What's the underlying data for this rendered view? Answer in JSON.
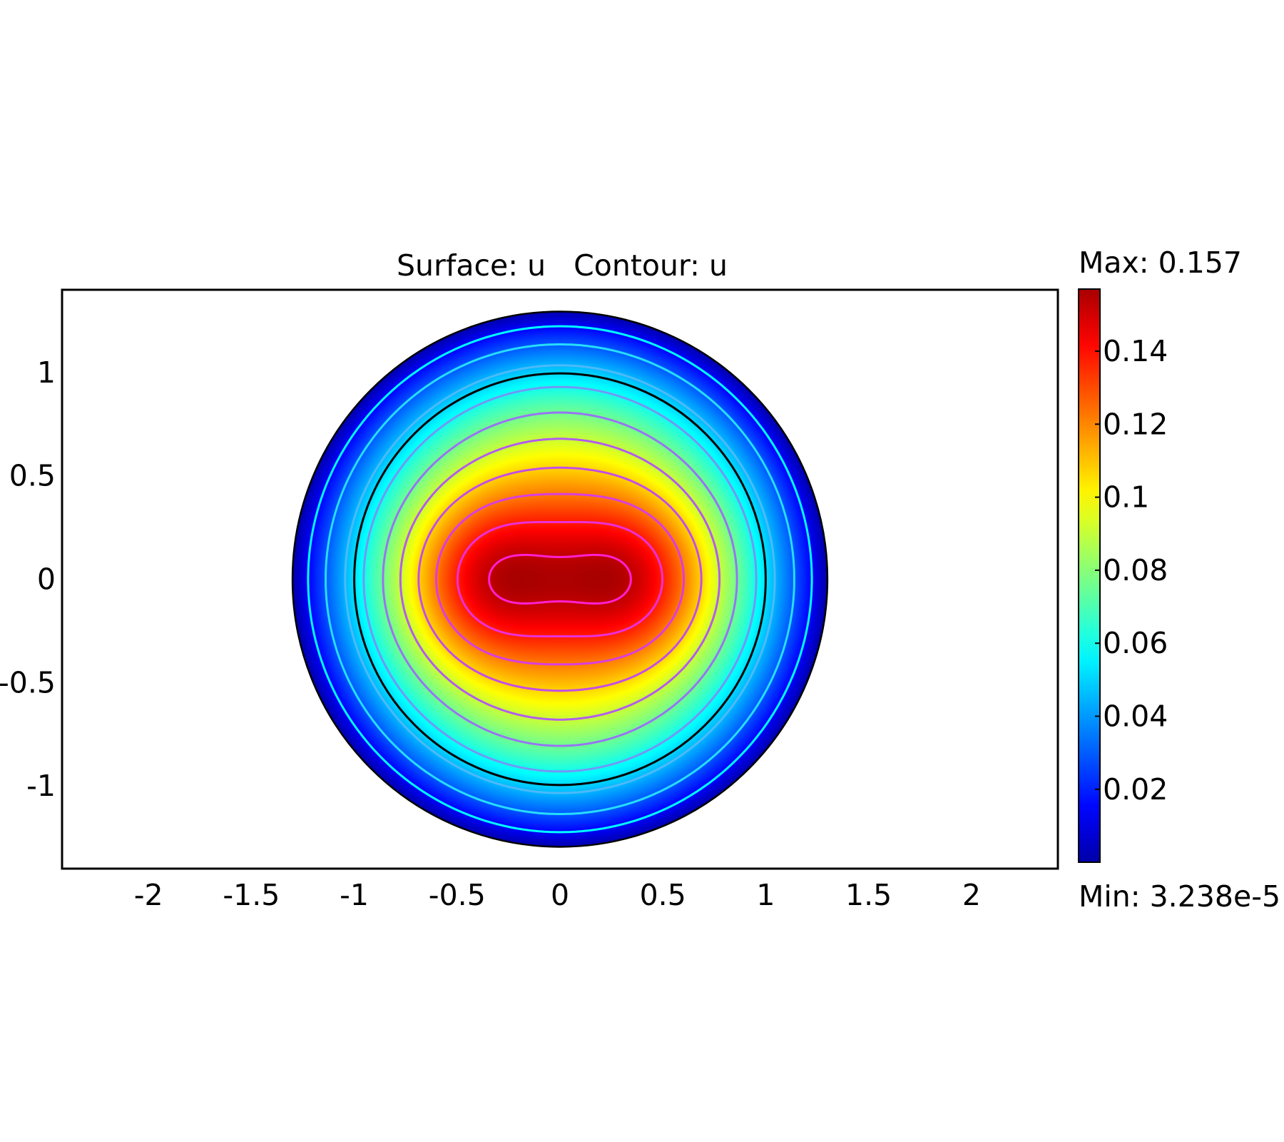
{
  "chart_data": {
    "type": "heatmap",
    "title": "Surface: u   Contour: u",
    "xlabel": "",
    "ylabel": "",
    "xlim": [
      -2.42,
      2.42
    ],
    "ylim": [
      -1.4,
      1.4
    ],
    "x_ticks": [
      "-2",
      "-1.5",
      "-1",
      "-0.5",
      "0",
      "0.5",
      "1",
      "1.5",
      "2"
    ],
    "x_tick_values": [
      -2,
      -1.5,
      -1,
      -0.5,
      0,
      0.5,
      1,
      1.5,
      2
    ],
    "y_ticks": [
      "1",
      "0.5",
      "0",
      "-0.5",
      "-1"
    ],
    "y_tick_values": [
      1,
      0.5,
      0,
      -0.5,
      -1
    ],
    "domain": {
      "shape": "disk",
      "center": [
        0,
        0
      ],
      "radius": 1.3
    },
    "inner_boundary_radius": 1.0,
    "peaks": [
      [
        -0.4,
        0
      ],
      [
        0.4,
        0
      ]
    ],
    "colormap": "rainbow",
    "colorbar": {
      "max_label": "Max: 0.157",
      "min_label": "Min: 3.238e-5",
      "max": 0.157,
      "min": 3.238e-05,
      "tick_labels": [
        "0.14",
        "0.12",
        "0.1",
        "0.08",
        "0.06",
        "0.04",
        "0.02"
      ],
      "tick_values": [
        0.14,
        0.12,
        0.1,
        0.08,
        0.06,
        0.04,
        0.02
      ]
    },
    "contour_levels": [
      0.153,
      0.138,
      0.122,
      0.107,
      0.091,
      0.076,
      0.06,
      0.045,
      0.029,
      0.014
    ],
    "colors": {
      "boundary": "#000000",
      "contour_high": "#ff1fd2",
      "contour_low": "#00ffff"
    }
  }
}
